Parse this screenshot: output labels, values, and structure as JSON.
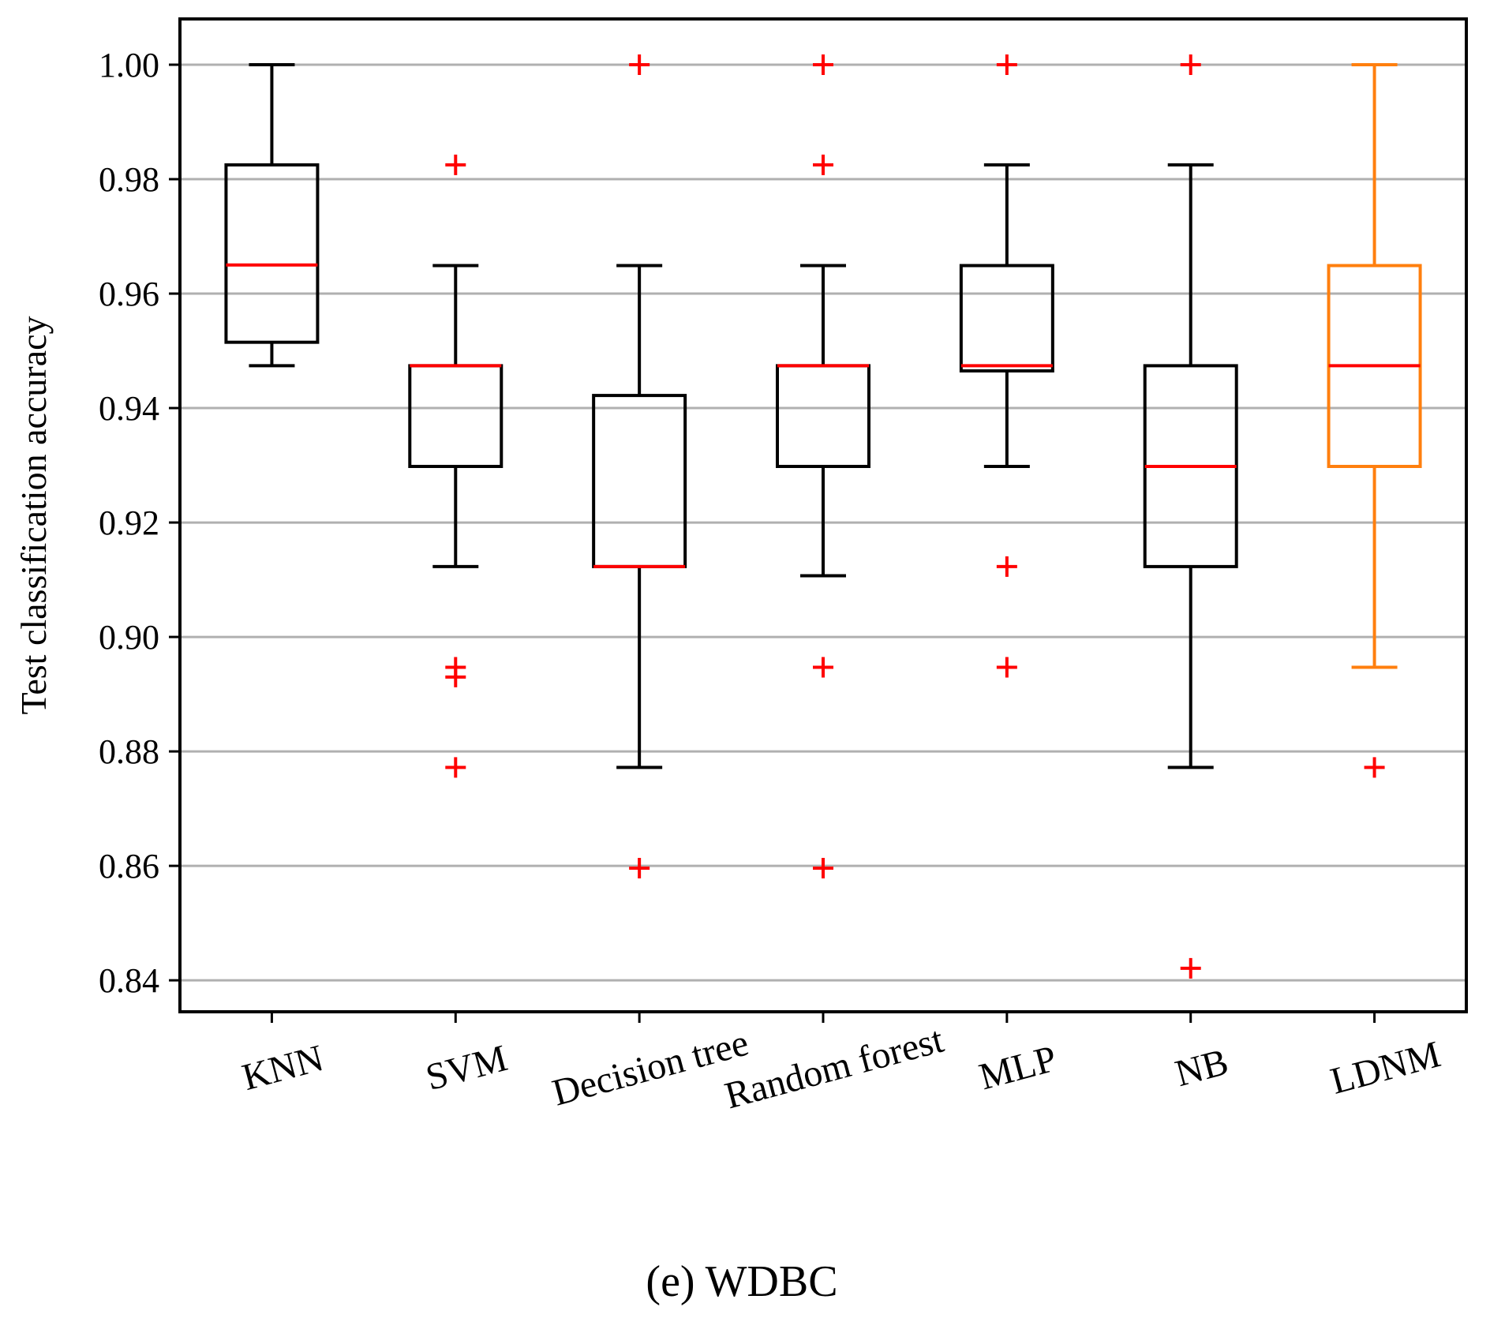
{
  "chart_data": {
    "type": "boxplot",
    "title": "",
    "xlabel": "",
    "ylabel": "Test classification  accuracy",
    "caption": "(e)  WDBC",
    "ylim": [
      0.8345,
      1.008
    ],
    "yticks": [
      0.84,
      0.86,
      0.88,
      0.9,
      0.92,
      0.94,
      0.96,
      0.98,
      1.0
    ],
    "ytick_labels": [
      "0.84",
      "0.86",
      "0.88",
      "0.90",
      "0.92",
      "0.94",
      "0.96",
      "0.98",
      "1.00"
    ],
    "grid": true,
    "categories": [
      "KNN",
      "SVM",
      "Decision tree",
      "Random forest",
      "MLP",
      "NB",
      "LDNM"
    ],
    "boxes": [
      {
        "name": "KNN",
        "whisker_low": 0.9474,
        "q1": 0.9515,
        "median": 0.965,
        "q3": 0.9825,
        "whisker_high": 1.0,
        "outliers": [],
        "color": "#000000"
      },
      {
        "name": "SVM",
        "whisker_low": 0.9123,
        "q1": 0.9298,
        "median": 0.9474,
        "q3": 0.9474,
        "whisker_high": 0.9649,
        "outliers": [
          0.9825,
          0.8947,
          0.893,
          0.8772
        ],
        "color": "#000000"
      },
      {
        "name": "Decision tree",
        "whisker_low": 0.8772,
        "q1": 0.9123,
        "median": 0.9123,
        "q3": 0.9422,
        "whisker_high": 0.9649,
        "outliers": [
          1.0,
          0.8596
        ],
        "color": "#000000"
      },
      {
        "name": "Random forest",
        "whisker_low": 0.9107,
        "q1": 0.9298,
        "median": 0.9474,
        "q3": 0.9474,
        "whisker_high": 0.9649,
        "outliers": [
          1.0,
          0.9825,
          0.8947,
          0.8596
        ],
        "color": "#000000"
      },
      {
        "name": "MLP",
        "whisker_low": 0.9298,
        "q1": 0.9465,
        "median": 0.9474,
        "q3": 0.9649,
        "whisker_high": 0.9825,
        "outliers": [
          1.0,
          0.9123,
          0.8947
        ],
        "color": "#000000"
      },
      {
        "name": "NB",
        "whisker_low": 0.8772,
        "q1": 0.9123,
        "median": 0.9298,
        "q3": 0.9474,
        "whisker_high": 0.9825,
        "outliers": [
          1.0,
          0.8421
        ],
        "color": "#000000"
      },
      {
        "name": "LDNM",
        "whisker_low": 0.8947,
        "q1": 0.9298,
        "median": 0.9474,
        "q3": 0.9649,
        "whisker_high": 1.0,
        "outliers": [
          0.8772
        ],
        "color": "#ff7f0e"
      }
    ],
    "median_color": "#ff0000",
    "outlier_color": "#ff0000",
    "grid_color": "#b0b0b0"
  }
}
